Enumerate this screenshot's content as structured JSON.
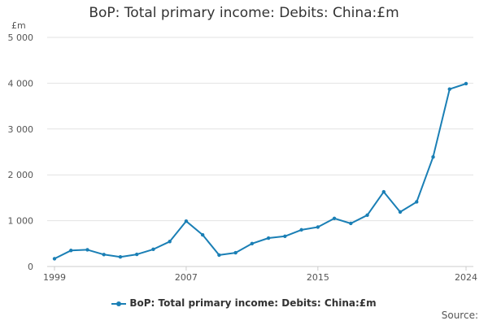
{
  "chart_data": {
    "type": "line",
    "title": "BoP: Total primary income: Debits: China:£m",
    "unit_label": "£m",
    "xlabel": "",
    "ylabel": "",
    "x": [
      1999,
      2000,
      2001,
      2002,
      2003,
      2004,
      2005,
      2006,
      2007,
      2008,
      2009,
      2010,
      2011,
      2012,
      2013,
      2014,
      2015,
      2016,
      2017,
      2018,
      2019,
      2020,
      2021,
      2022,
      2023,
      2024
    ],
    "series": [
      {
        "name": "BoP: Total primary income: Debits: China:£m",
        "color": "#1a7fb5",
        "values": [
          170,
          350,
          365,
          260,
          210,
          265,
          375,
          545,
          990,
          690,
          250,
          300,
          500,
          620,
          660,
          800,
          860,
          1050,
          940,
          1120,
          1630,
          1190,
          1410,
          2390,
          3870,
          3990
        ]
      }
    ],
    "x_ticks": [
      1999,
      2007,
      2015,
      2024
    ],
    "y_ticks": [
      0,
      1000,
      2000,
      3000,
      4000,
      5000
    ],
    "y_tick_labels": [
      "0",
      "1 000",
      "2 000",
      "3 000",
      "4 000",
      "5 000"
    ],
    "ylim": [
      0,
      5000
    ],
    "grid": true,
    "legend": "bottom",
    "source_label": "Source:"
  }
}
